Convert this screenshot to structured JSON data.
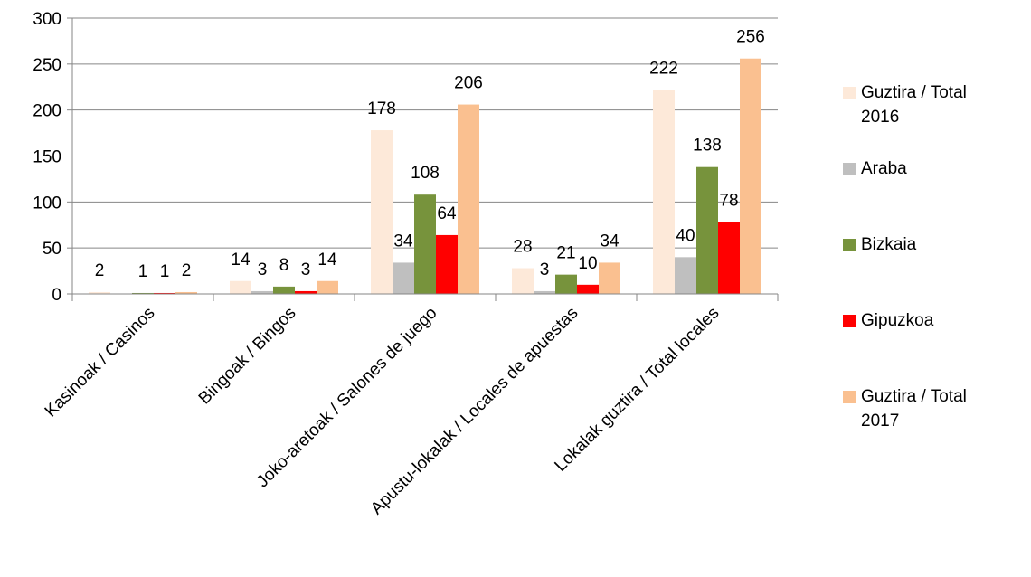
{
  "chart_data": {
    "type": "bar",
    "categories": [
      "Kasinoak  / Casinos",
      "Bingoak / Bingos",
      "Joko-aretoak / Salones  de juego",
      "Apustu-lokalak / Locales de apuestas",
      "Lokalak guztira / Total locales"
    ],
    "series": [
      {
        "name": "Guztira / Total 2016",
        "color": "#FDE9D9",
        "values": [
          2,
          14,
          178,
          28,
          222
        ],
        "labels": [
          "2",
          "14",
          "178",
          "28",
          "222"
        ]
      },
      {
        "name": "Araba",
        "color": "#BFBFBF",
        "values": [
          0,
          3,
          34,
          3,
          40
        ],
        "labels": [
          "",
          "3",
          "34",
          "3",
          "40"
        ]
      },
      {
        "name": "Bizkaia",
        "color": "#77933C",
        "values": [
          1,
          8,
          108,
          21,
          138
        ],
        "labels": [
          "1",
          "8",
          "108",
          "21",
          "138"
        ]
      },
      {
        "name": "Gipuzkoa",
        "color": "#FF0000",
        "values": [
          1,
          3,
          64,
          10,
          78
        ],
        "labels": [
          "1",
          "3",
          "64",
          "10",
          "78"
        ]
      },
      {
        "name": "Guztira / Total 2017",
        "color": "#FAC090",
        "values": [
          2,
          14,
          206,
          34,
          256
        ],
        "labels": [
          "2",
          "14",
          "206",
          "34",
          "256"
        ]
      }
    ],
    "yticks": [
      "0",
      "50",
      "100",
      "150",
      "200",
      "250",
      "300"
    ],
    "ylim": [
      0,
      300
    ],
    "grid": true,
    "legend": "right"
  }
}
